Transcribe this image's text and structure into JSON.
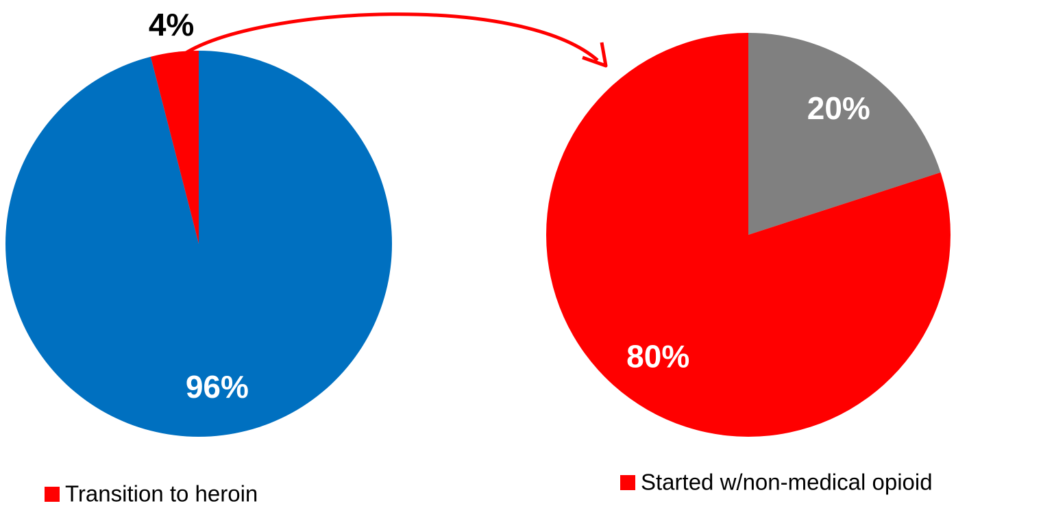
{
  "chart_data": [
    {
      "type": "pie",
      "categories": [
        null,
        "Transition to heroin"
      ],
      "values": [
        96,
        4
      ],
      "value_labels": [
        "96%",
        "4%"
      ],
      "colors": [
        "#0070c0",
        "#ff0000"
      ]
    },
    {
      "type": "pie",
      "categories": [
        null,
        "Started w/non-medical opioid"
      ],
      "values": [
        20,
        80
      ],
      "value_labels": [
        "20%",
        "80%"
      ],
      "colors": [
        "#808080",
        "#ff0000"
      ]
    }
  ]
}
